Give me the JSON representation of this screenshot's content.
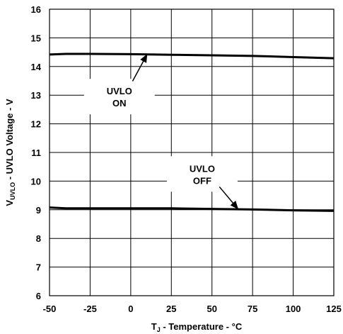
{
  "chart_data": {
    "type": "line",
    "title": "",
    "xlabel": {
      "main": "T",
      "sub": "J",
      "rest": " - Temperature - °C"
    },
    "ylabel": {
      "main": "V",
      "sub": "UVLO",
      "rest": " - UVLO Voltage - V"
    },
    "xlim": [
      -50,
      125
    ],
    "ylim": [
      6,
      16
    ],
    "xticks": [
      "-50",
      "-25",
      "0",
      "25",
      "50",
      "75",
      "100",
      "125"
    ],
    "yticks": [
      "6",
      "7",
      "8",
      "9",
      "10",
      "11",
      "12",
      "13",
      "14",
      "15",
      "16"
    ],
    "grid": true,
    "legend": "none",
    "series": [
      {
        "name": "UVLO ON",
        "x": [
          -50,
          -40,
          -25,
          0,
          25,
          50,
          75,
          100,
          125
        ],
        "y": [
          14.42,
          14.44,
          14.44,
          14.43,
          14.41,
          14.39,
          14.37,
          14.33,
          14.29
        ]
      },
      {
        "name": "UVLO OFF",
        "x": [
          -50,
          -40,
          -25,
          0,
          25,
          50,
          75,
          100,
          125
        ],
        "y": [
          9.08,
          9.05,
          9.05,
          9.05,
          9.05,
          9.03,
          9.01,
          8.98,
          8.96
        ]
      }
    ],
    "annotations": [
      {
        "text_lines": [
          "UVLO",
          "ON"
        ],
        "target": {
          "x": 10,
          "y": 14.42
        },
        "anchor": {
          "x": -7,
          "y": 12.95
        }
      },
      {
        "text_lines": [
          "UVLO",
          "OFF"
        ],
        "target": {
          "x": 66,
          "y": 9.03
        },
        "anchor": {
          "x": 44,
          "y": 10.25
        }
      }
    ]
  }
}
